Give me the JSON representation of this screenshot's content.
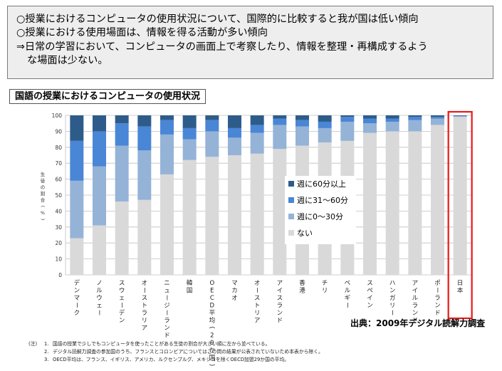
{
  "summary": {
    "lines": [
      "○授業におけるコンピュータの使用状況について、国際的に比較すると我が国は低い傾向",
      "○授業における使用場面は、情報を得る活動が多い傾向",
      "⇒日常の学習において、コンピュータの画面上で考察したり、情報を整理・再構成するよう",
      "な場面は少ない。"
    ]
  },
  "chart_data": {
    "type": "bar",
    "stacked": true,
    "title": "国語の授業におけるコンピュータの使用状況",
    "ylabel": "生徒の割合(%)",
    "ylim": [
      0,
      100
    ],
    "yticks": [
      0,
      10,
      20,
      30,
      40,
      50,
      60,
      70,
      80,
      90,
      100
    ],
    "grid": true,
    "legend_position": "center",
    "categories": [
      "デンマーク",
      "ノルウェー",
      "スウェーデン",
      "オーストラリア",
      "ニュージーランド",
      "韓国",
      "OECD平均(29か国)",
      "マカオ",
      "オーストリア",
      "アイスランド",
      "香港",
      "チリ",
      "ベルギー",
      "スペイン",
      "ハンガリー",
      "アイルランド",
      "ポーランド",
      "日本"
    ],
    "highlight": "日本",
    "series": [
      {
        "name": "ない",
        "color": "#d9d9d9",
        "values": [
          23,
          31,
          46,
          47,
          63,
          72,
          74,
          75,
          76,
          79,
          81,
          83,
          84,
          89,
          90,
          90,
          94,
          99
        ]
      },
      {
        "name": "週に0～30分",
        "color": "#95b3d7",
        "values": [
          36,
          37,
          35,
          31,
          25,
          13,
          16,
          11,
          13,
          15,
          12,
          9,
          12,
          6,
          6,
          7,
          4,
          0.5
        ]
      },
      {
        "name": "週に31～60分",
        "color": "#4a86d6",
        "values": [
          25,
          22,
          14,
          15,
          9,
          7,
          7,
          6,
          5,
          4,
          4,
          4,
          3,
          3,
          2,
          2,
          1,
          0.3
        ]
      },
      {
        "name": "週に60分以上",
        "color": "#2e5c8a",
        "values": [
          16,
          10,
          5,
          7,
          3,
          8,
          3,
          8,
          6,
          2,
          3,
          4,
          1,
          2,
          2,
          1,
          1,
          0.2
        ]
      }
    ]
  },
  "source": "出典：2009年デジタル読解力調査",
  "notes": {
    "label": "(注)",
    "items": [
      {
        "num": "1.",
        "text": "国語の授業で少しでもコンピュータを使ったことがある生徒の割合が大きい順に左から並べている。"
      },
      {
        "num": "2.",
        "text": "デジタル読解力調査の参加国のうち、フランスとコロンビアについてはこの問の結果が公表されていないため本表から除く。"
      },
      {
        "num": "3.",
        "text": "OECD平均は、フランス、イギリス、アメリカ、ルクセンブルグ、メキシコを除くOECD加盟29か国の平均。"
      }
    ]
  }
}
